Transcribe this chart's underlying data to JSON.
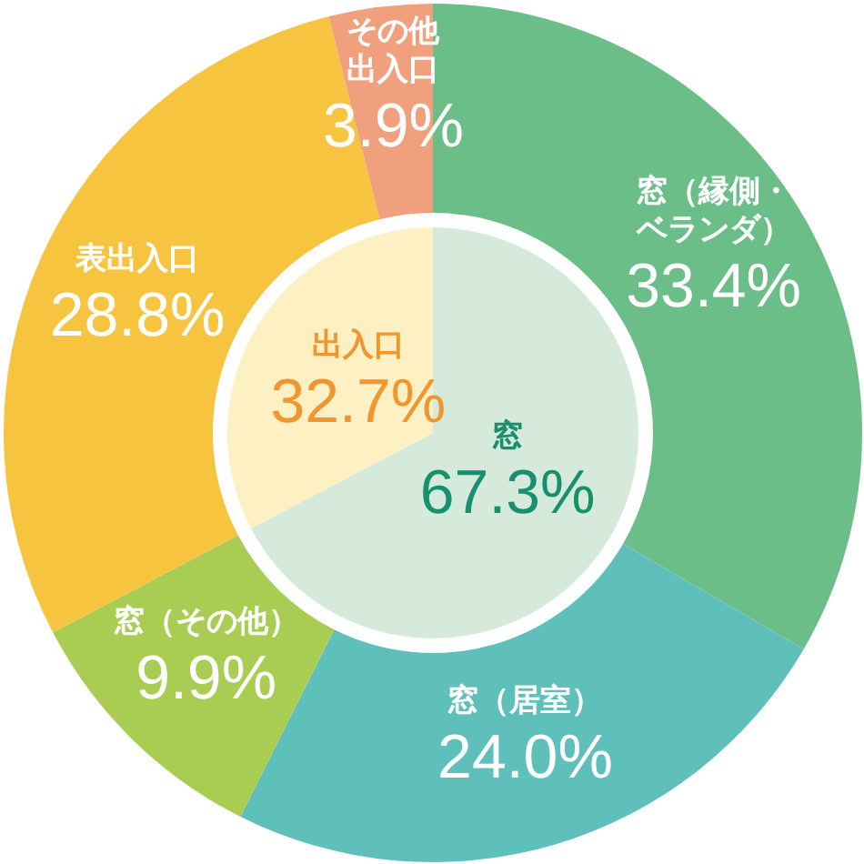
{
  "chart_data": [
    {
      "type": "donut",
      "categories": [
        "窓（縁側・ベランダ）",
        "窓（居室）",
        "窓（その他）",
        "表出入口",
        "その他出入口"
      ],
      "values": [
        33.4,
        24.0,
        9.9,
        28.8,
        3.9
      ],
      "colors": [
        "#6bbe87",
        "#5ebfbb",
        "#a8cd52",
        "#f7c43f",
        "#f0a07d"
      ],
      "value_labels": [
        "33.4%",
        "24.0%",
        "9.9%",
        "28.8%",
        "3.9%"
      ]
    },
    {
      "type": "pie",
      "categories": [
        "窓",
        "出入口"
      ],
      "values": [
        67.3,
        32.7
      ],
      "colors": [
        "#d5eadb",
        "#fdf0c3"
      ],
      "value_labels": [
        "67.3%",
        "32.7%"
      ]
    }
  ]
}
